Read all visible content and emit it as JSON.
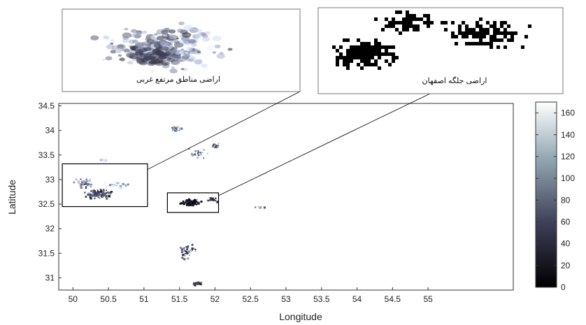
{
  "map": {
    "xlabel": "Longitude",
    "ylabel": "Latitude",
    "x_ticks": [
      "50",
      "50.5",
      "51",
      "51.5",
      "52",
      "52.5",
      "53",
      "53.5",
      "54",
      "54.5",
      "55"
    ],
    "y_ticks": [
      "34.5",
      "34",
      "33.5",
      "33",
      "32.5",
      "32",
      "31.5",
      "31"
    ],
    "x_range": [
      49.8,
      56.2
    ],
    "y_range": [
      30.75,
      34.55
    ],
    "colorbar": {
      "ticks": [
        "160",
        "140",
        "120",
        "100",
        "80",
        "60",
        "40",
        "20",
        "0"
      ],
      "range": [
        0,
        170
      ],
      "colormap": "bone",
      "low_color": "#000000",
      "high_color": "#ffffff"
    }
  },
  "insets": {
    "left": {
      "label": "اراضی مناطق مرتفع غربی",
      "region_lon": [
        49.85,
        51.05
      ],
      "region_lat": [
        32.45,
        33.32
      ]
    },
    "right": {
      "label": "اراضی جلگه اصفهان",
      "region_lon": [
        51.33,
        52.05
      ],
      "region_lat": [
        32.33,
        32.73
      ]
    }
  }
}
